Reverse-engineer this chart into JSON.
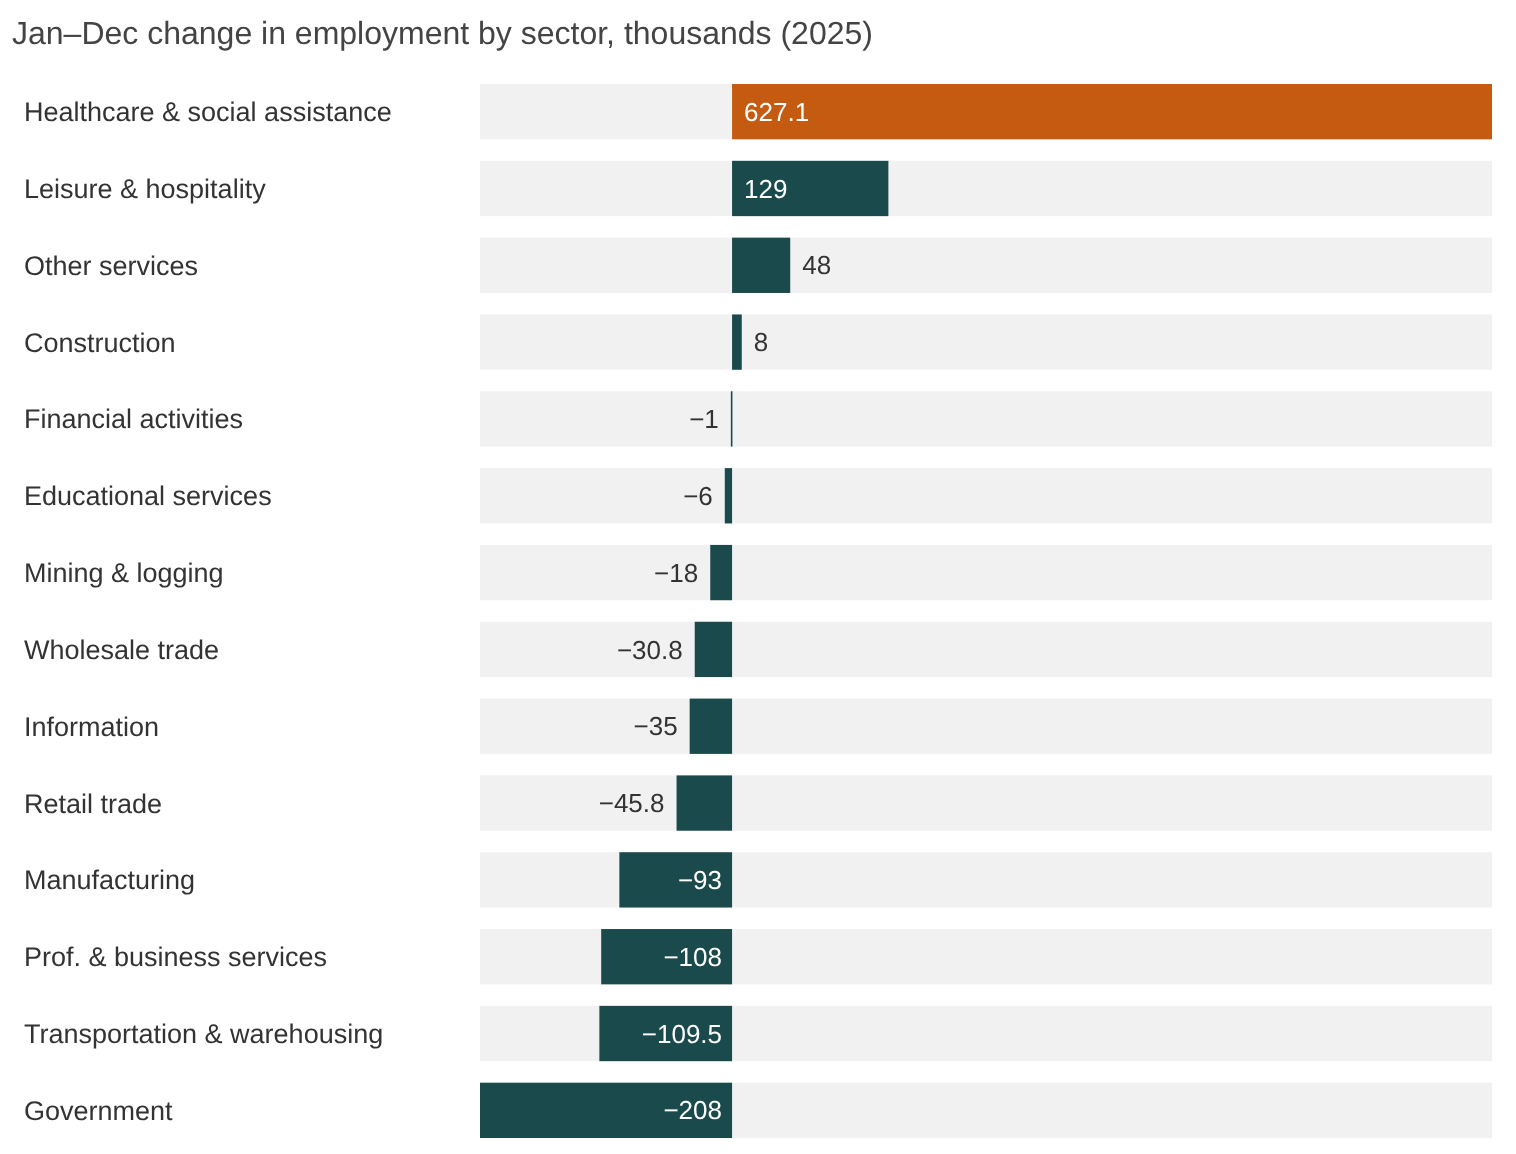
{
  "chart_data": {
    "type": "bar",
    "orientation": "horizontal",
    "title": "Jan–Dec change in employment by sector, thousands (2025)",
    "categories": [
      "Healthcare & social assistance",
      "Leisure & hospitality",
      "Other services",
      "Construction",
      "Financial activities",
      "Educational services",
      "Mining & logging",
      "Wholesale trade",
      "Information",
      "Retail trade",
      "Manufacturing",
      "Prof. & business services",
      "Transportation & warehousing",
      "Government"
    ],
    "values": [
      627.1,
      129,
      48,
      8,
      -1,
      -6,
      -18,
      -30.8,
      -35,
      -45.8,
      -93,
      -108,
      -109.5,
      -208
    ],
    "colors": [
      "#c55a11",
      "#1b4a4c",
      "#1b4a4c",
      "#1b4a4c",
      "#1b4a4c",
      "#1b4a4c",
      "#1b4a4c",
      "#1b4a4c",
      "#1b4a4c",
      "#1b4a4c",
      "#1b4a4c",
      "#1b4a4c",
      "#1b4a4c",
      "#1b4a4c"
    ],
    "data_labels": true
  }
}
